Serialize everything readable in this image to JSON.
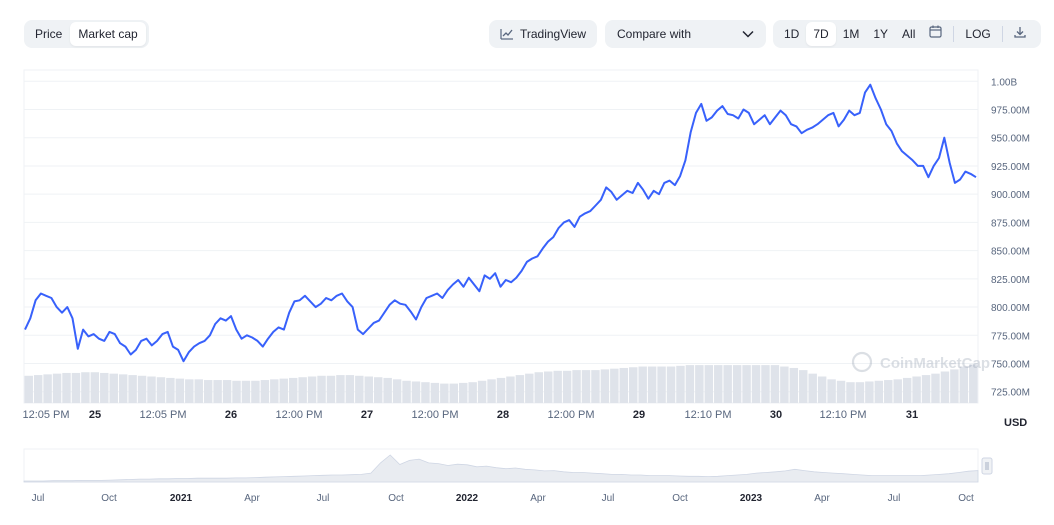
{
  "toolbar": {
    "view_toggle": [
      "Price",
      "Market cap"
    ],
    "active_view": "Market cap",
    "tradingview_label": "TradingView",
    "compare_label": "Compare with",
    "ranges": [
      "1D",
      "7D",
      "1M",
      "1Y",
      "All"
    ],
    "active_range": "7D",
    "log_label": "LOG"
  },
  "colors": {
    "line": "#3861fb",
    "volume": "#dfe3ea",
    "navigator_fill": "#e9ecf1",
    "grid": "#eff2f5"
  },
  "icons": {
    "tradingview": "chart-line-icon",
    "compare": "chevron-down-icon",
    "calendar": "calendar-icon",
    "download": "download-icon",
    "watermark": "coinmarketcap-logo"
  },
  "watermark_text": "CoinMarketCap",
  "currency_label": "USD",
  "chart_data": {
    "type": "line",
    "y_ticks": [
      "1.00B",
      "975.00M",
      "950.00M",
      "925.00M",
      "900.00M",
      "875.00M",
      "850.00M",
      "825.00M",
      "800.00M",
      "775.00M",
      "750.00M",
      "725.00M"
    ],
    "ylim": [
      715000000,
      1010000000
    ],
    "y_unit": "USD",
    "grid": true,
    "x_ticks": [
      "12:05 PM",
      "25",
      "12:05 PM",
      "26",
      "12:00 PM",
      "27",
      "12:00 PM",
      "28",
      "12:00 PM",
      "29",
      "12:10 PM",
      "30",
      "12:10 PM",
      "31"
    ],
    "series": [
      {
        "values": [
          780,
          790,
          806,
          812,
          810,
          808,
          800,
          795,
          800,
          790,
          763,
          780,
          774,
          776,
          772,
          770,
          778,
          776,
          768,
          765,
          758,
          762,
          770,
          772,
          766,
          770,
          776,
          778,
          765,
          762,
          752,
          760,
          765,
          768,
          770,
          775,
          785,
          790,
          788,
          792,
          780,
          772,
          775,
          773,
          770,
          765,
          772,
          778,
          782,
          780,
          795,
          805,
          806,
          810,
          805,
          800,
          803,
          808,
          806,
          810,
          812,
          805,
          800,
          780,
          776,
          781,
          786,
          788,
          795,
          802,
          806,
          803,
          802,
          796,
          789,
          800,
          808,
          810,
          812,
          808,
          815,
          820,
          824,
          818,
          826,
          820,
          814,
          828,
          825,
          830,
          818,
          824,
          822,
          826,
          832,
          840,
          843,
          845,
          852,
          858,
          862,
          870,
          875,
          877,
          871,
          880,
          883,
          885,
          890,
          895,
          906,
          902,
          895,
          899,
          903,
          901,
          910,
          904,
          896,
          903,
          900,
          910,
          912,
          908,
          916,
          930,
          955,
          972,
          980,
          965,
          968,
          974,
          978,
          971,
          970,
          967,
          975,
          972,
          962,
          966,
          970,
          962,
          968,
          974,
          970,
          962,
          960,
          954,
          957,
          959,
          962,
          966,
          970,
          972,
          960,
          966,
          974,
          970,
          972,
          990,
          997,
          985,
          975,
          962,
          956,
          945,
          938,
          934,
          930,
          925,
          925,
          915,
          925,
          932,
          950,
          928,
          910,
          913,
          920,
          918,
          915
        ],
        "unit": "M"
      }
    ],
    "volume": [
      27,
      28,
      29,
      30,
      31,
      31,
      32,
      32,
      31,
      30,
      29,
      28,
      27,
      26,
      25,
      24,
      23,
      22,
      22,
      21,
      21,
      21,
      20,
      20,
      20,
      21,
      22,
      23,
      24,
      25,
      26,
      27,
      27,
      28,
      28,
      27,
      26,
      25,
      24,
      22,
      20,
      19,
      18,
      17,
      16,
      16,
      17,
      18,
      20,
      22,
      24,
      26,
      28,
      30,
      32,
      33,
      34,
      34,
      35,
      35,
      35,
      36,
      37,
      38,
      39,
      40,
      40,
      40,
      40,
      41,
      42,
      42,
      42,
      42,
      42,
      42,
      42,
      42,
      42,
      42,
      40,
      38,
      35,
      30,
      26,
      22,
      20,
      18,
      18,
      19,
      20,
      21,
      22,
      24,
      26,
      28,
      30,
      33,
      36,
      40,
      43
    ],
    "navigator": {
      "x_ticks": [
        "Jul",
        "Oct",
        "2021",
        "Apr",
        "Jul",
        "Oct",
        "2022",
        "Apr",
        "Jul",
        "Oct",
        "2023",
        "Apr",
        "Jul",
        "Oct"
      ],
      "values": [
        3,
        3,
        3,
        4,
        4,
        4,
        5,
        5,
        5,
        6,
        7,
        8,
        9,
        9,
        10,
        10,
        11,
        11,
        12,
        12,
        12,
        12,
        13,
        13,
        14,
        15,
        16,
        17,
        18,
        19,
        20,
        21,
        22,
        22,
        23,
        24,
        28,
        60,
        85,
        55,
        68,
        72,
        60,
        58,
        52,
        56,
        54,
        48,
        50,
        45,
        42,
        44,
        40,
        38,
        35,
        36,
        32,
        30,
        30,
        28,
        26,
        24,
        24,
        22,
        22,
        20,
        20,
        20,
        19,
        18,
        18,
        17,
        18,
        20,
        22,
        24,
        28,
        30,
        32,
        35,
        40,
        36,
        32,
        30,
        28,
        26,
        24,
        22,
        20,
        20,
        20,
        20,
        20,
        20,
        22,
        24,
        26,
        30,
        34,
        36
      ]
    }
  }
}
